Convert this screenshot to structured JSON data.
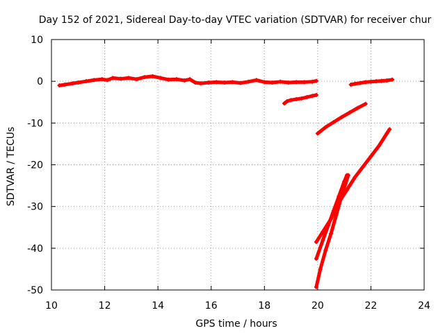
{
  "chart_data": {
    "type": "scatter",
    "title": "Day 152 of 2021, Sidereal Day-to-day VTEC variation (SDTVAR) for receiver chur",
    "xlabel": "GPS time / hours",
    "ylabel": "SDTVAR / TECUs",
    "xlim": [
      10,
      24
    ],
    "ylim": [
      -50,
      10
    ],
    "xticks": [
      10,
      12,
      14,
      16,
      18,
      20,
      22,
      24
    ],
    "yticks": [
      10,
      0,
      -10,
      -20,
      -30,
      -40,
      -50
    ],
    "grid": true,
    "marker_color": "#ff0000",
    "series": [
      {
        "points": [
          [
            10.3,
            -1.0
          ],
          [
            10.5,
            -0.8
          ],
          [
            10.8,
            -0.5
          ],
          [
            11.0,
            -0.3
          ],
          [
            11.3,
            0.0
          ],
          [
            11.6,
            0.3
          ],
          [
            11.9,
            0.5
          ],
          [
            12.1,
            0.3
          ],
          [
            12.3,
            0.8
          ],
          [
            12.6,
            0.6
          ],
          [
            12.9,
            0.8
          ],
          [
            13.2,
            0.5
          ],
          [
            13.5,
            1.0
          ],
          [
            13.8,
            1.2
          ],
          [
            14.1,
            0.8
          ],
          [
            14.4,
            0.4
          ],
          [
            14.7,
            0.5
          ],
          [
            15.0,
            0.2
          ],
          [
            15.2,
            0.5
          ],
          [
            15.4,
            -0.3
          ],
          [
            15.6,
            -0.5
          ],
          [
            15.9,
            -0.3
          ],
          [
            16.2,
            -0.2
          ],
          [
            16.5,
            -0.3
          ],
          [
            16.8,
            -0.2
          ],
          [
            17.1,
            -0.4
          ],
          [
            17.4,
            -0.1
          ],
          [
            17.7,
            0.3
          ],
          [
            18.0,
            -0.2
          ],
          [
            18.3,
            -0.3
          ],
          [
            18.6,
            -0.1
          ],
          [
            18.9,
            -0.3
          ],
          [
            19.2,
            -0.2
          ],
          [
            19.5,
            -0.2
          ],
          [
            19.8,
            -0.1
          ],
          [
            19.95,
            0.1
          ]
        ]
      },
      {
        "points": [
          [
            18.75,
            -5.3
          ],
          [
            18.85,
            -4.8
          ],
          [
            19.0,
            -4.5
          ],
          [
            19.2,
            -4.3
          ],
          [
            19.4,
            -4.1
          ],
          [
            19.6,
            -3.8
          ],
          [
            19.8,
            -3.5
          ],
          [
            19.95,
            -3.3
          ]
        ]
      },
      {
        "points": [
          [
            21.25,
            -0.8
          ],
          [
            21.4,
            -0.6
          ],
          [
            21.6,
            -0.4
          ],
          [
            21.8,
            -0.2
          ],
          [
            22.0,
            -0.1
          ],
          [
            22.2,
            0.0
          ],
          [
            22.4,
            0.1
          ],
          [
            22.6,
            0.2
          ],
          [
            22.8,
            0.4
          ]
        ]
      },
      {
        "points": [
          [
            20.0,
            -12.5
          ],
          [
            20.3,
            -11.0
          ],
          [
            20.6,
            -9.8
          ],
          [
            20.9,
            -8.6
          ],
          [
            21.2,
            -7.5
          ],
          [
            21.5,
            -6.4
          ],
          [
            21.8,
            -5.4
          ]
        ]
      },
      {
        "points": [
          [
            19.95,
            -38.5
          ],
          [
            20.2,
            -36.0
          ],
          [
            20.5,
            -33.0
          ],
          [
            20.8,
            -29.0
          ],
          [
            21.1,
            -26.0
          ],
          [
            21.4,
            -23.0
          ],
          [
            21.7,
            -20.5
          ],
          [
            22.0,
            -18.0
          ],
          [
            22.3,
            -15.5
          ],
          [
            22.6,
            -12.5
          ],
          [
            22.7,
            -11.5
          ]
        ]
      },
      {
        "points": [
          [
            19.95,
            -42.5
          ],
          [
            20.2,
            -38.0
          ],
          [
            20.4,
            -34.5
          ],
          [
            20.6,
            -31.0
          ],
          [
            20.8,
            -27.5
          ],
          [
            21.0,
            -24.0
          ],
          [
            21.1,
            -22.5
          ]
        ]
      },
      {
        "points": [
          [
            19.95,
            -49.3
          ],
          [
            20.1,
            -45.0
          ],
          [
            20.3,
            -40.5
          ],
          [
            20.5,
            -36.5
          ],
          [
            20.7,
            -32.0
          ],
          [
            20.9,
            -27.5
          ],
          [
            21.05,
            -24.5
          ],
          [
            21.15,
            -22.5
          ]
        ]
      }
    ]
  }
}
